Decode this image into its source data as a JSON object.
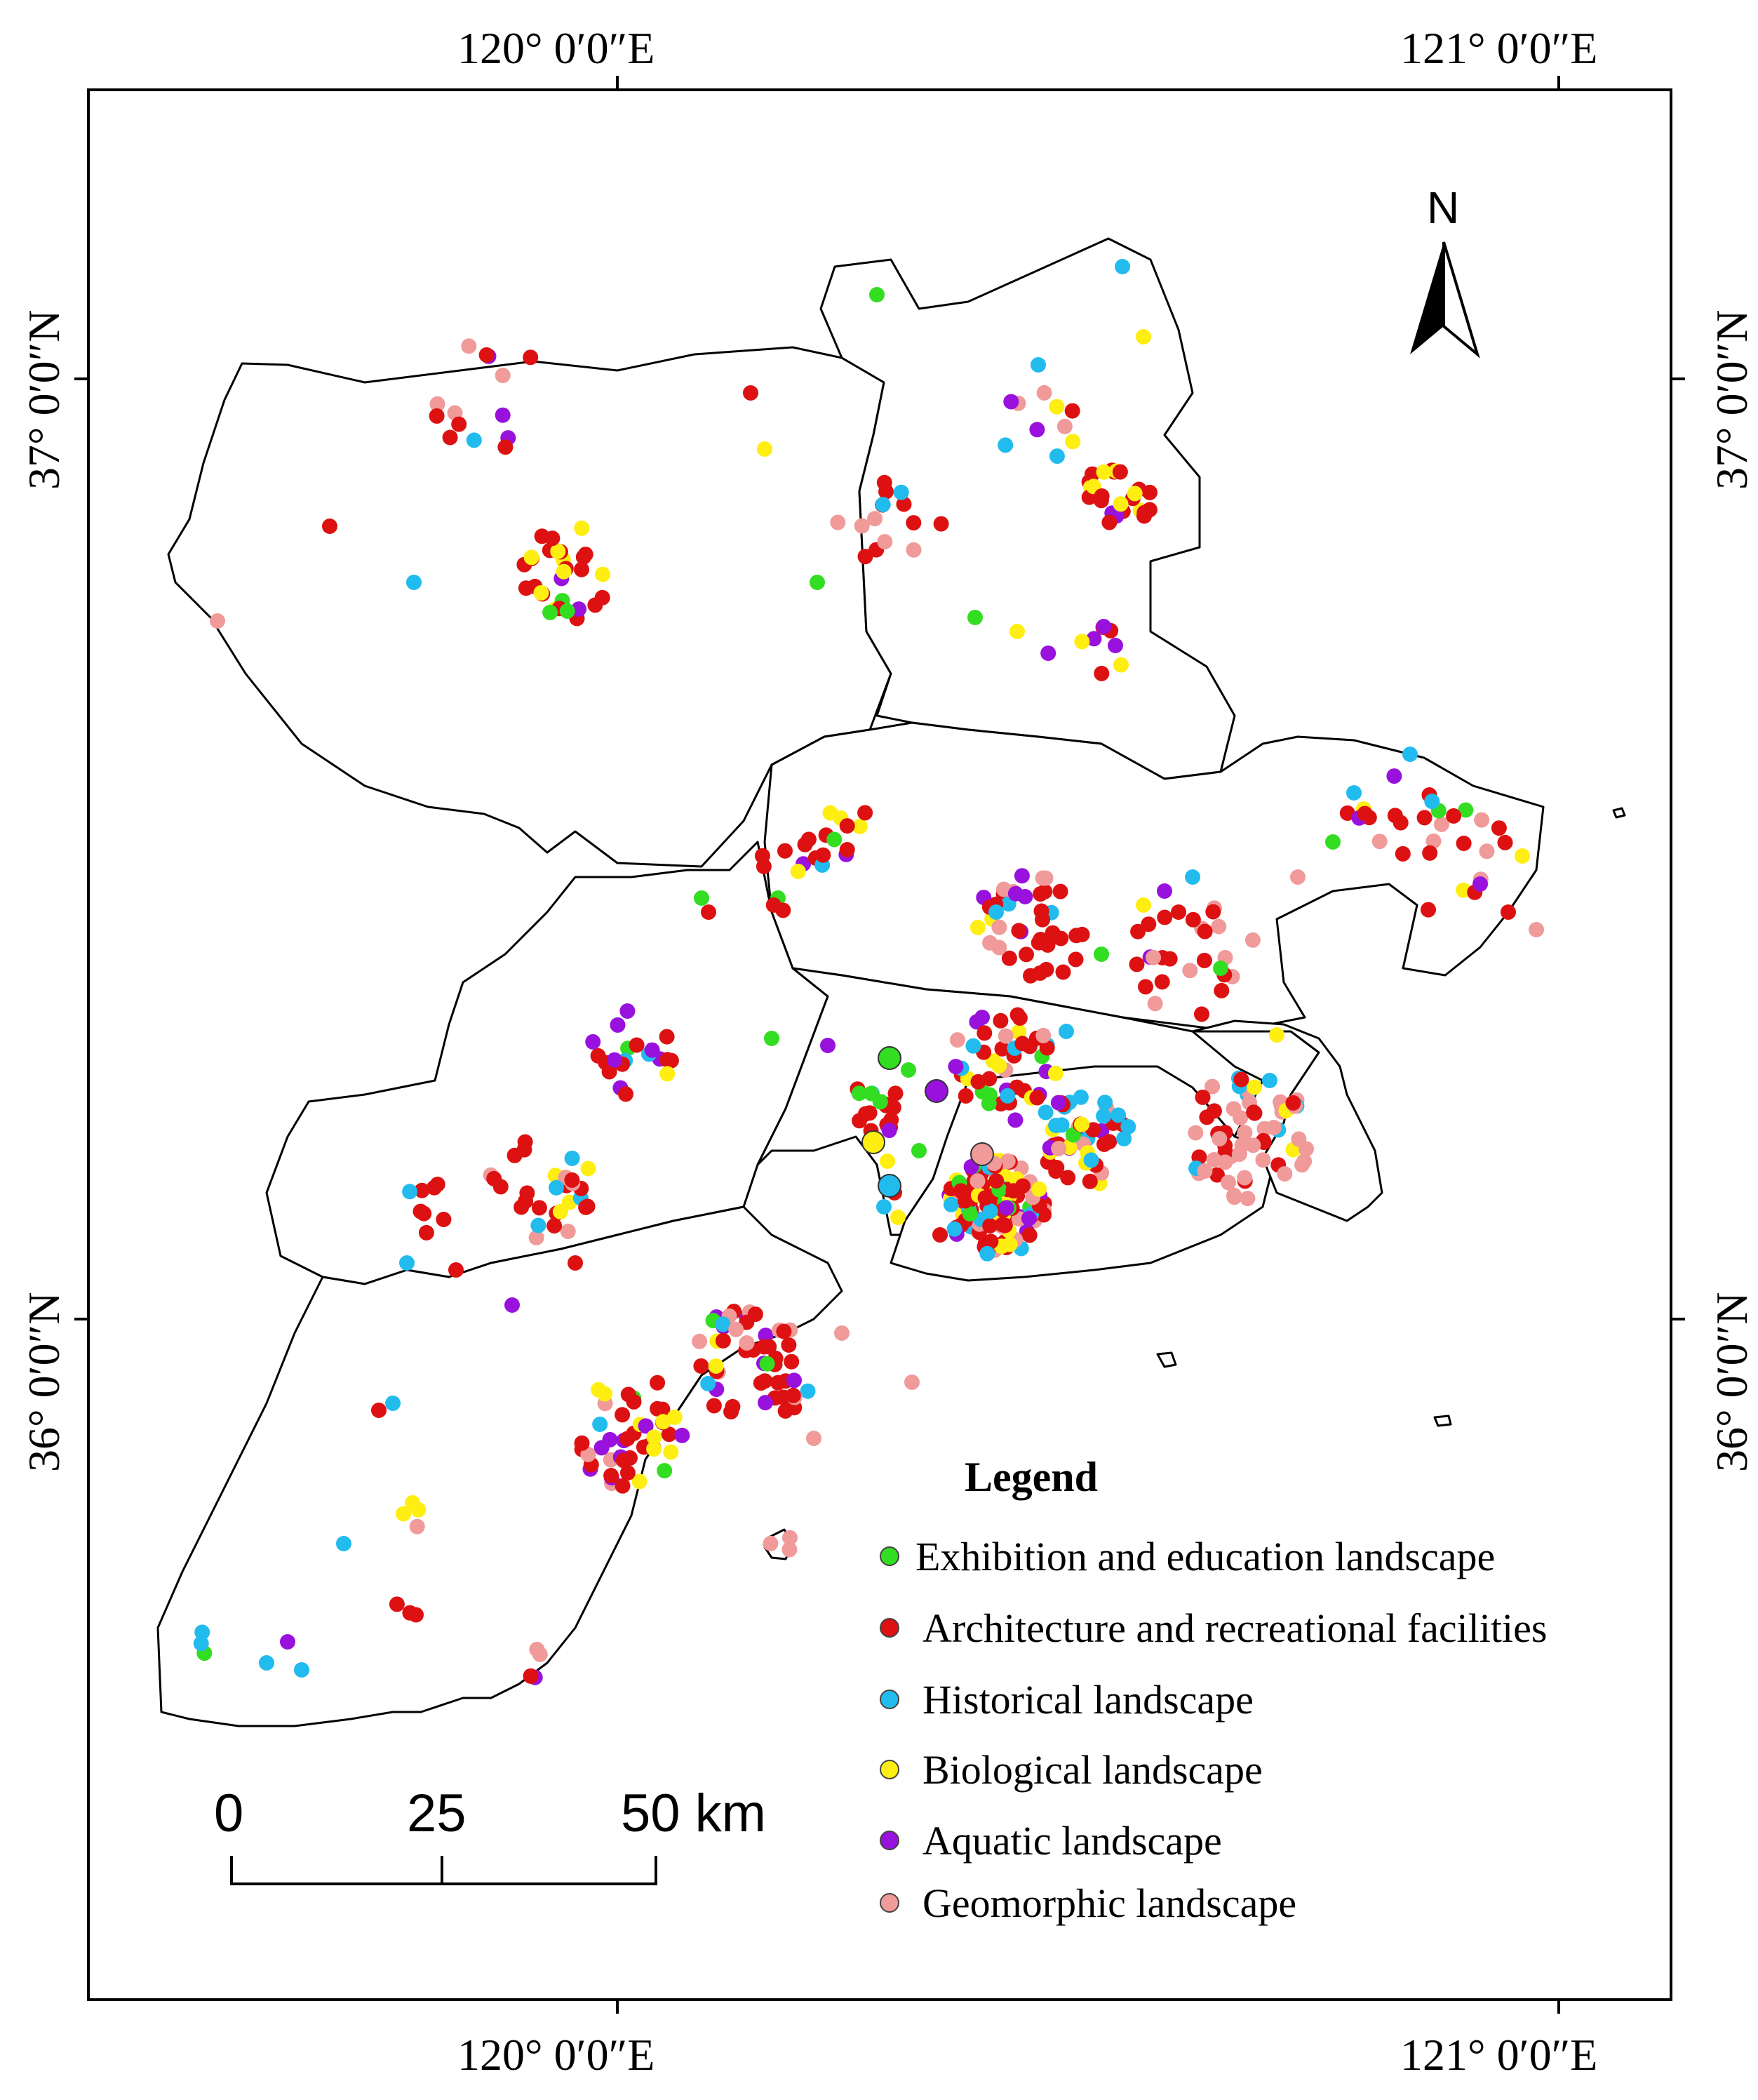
{
  "graticule": {
    "top_labels": [
      "120° 0′0″E",
      "121° 0′0″E"
    ],
    "bottom_labels": [
      "120° 0′0″E",
      "121° 0′0″E"
    ],
    "left_labels": [
      "37° 0′0″N",
      "36° 0′0″N"
    ],
    "right_labels": [
      "37° 0′0″N",
      "36° 0′0″N"
    ]
  },
  "north_arrow": {
    "label": "N",
    "icon": "north-arrow-icon"
  },
  "scale_bar": {
    "ticks": [
      "0",
      "25"
    ],
    "end_label": "50 km"
  },
  "legend": {
    "title": "Legend",
    "items": [
      {
        "label": "Exhibition and education landscape",
        "color": "#33dd22"
      },
      {
        "label": "Architecture and recreational facilities",
        "color": "#dd1111"
      },
      {
        "label": "Historical landscape",
        "color": "#22bbee"
      },
      {
        "label": "Biological landscape",
        "color": "#ffee11"
      },
      {
        "label": "Aquatic landscape",
        "color": "#9911dd"
      },
      {
        "label": "Geomorphic landscape",
        "color": "#f09a9a"
      }
    ]
  },
  "colors": {
    "exhibition": "#33dd22",
    "architecture": "#dd1111",
    "historical": "#22bbee",
    "biological": "#ffee11",
    "aquatic": "#9911dd",
    "geomorphic": "#f09a9a"
  }
}
